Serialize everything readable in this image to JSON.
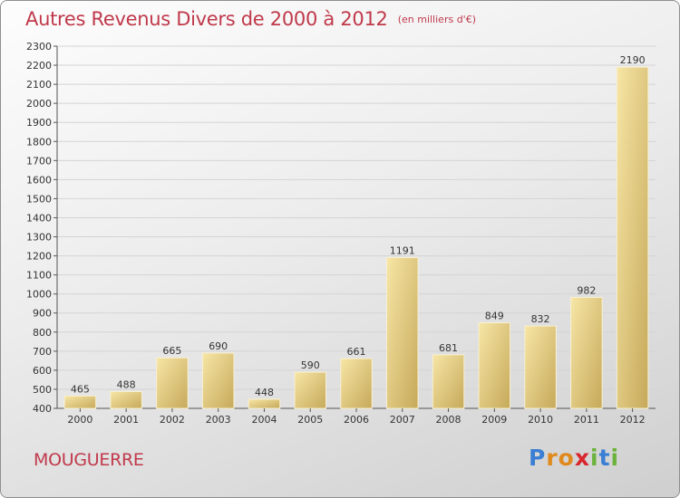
{
  "title": "Autres Revenus Divers de 2000 à 2012",
  "subtitle": "(en milliers d'€)",
  "commune": "MOUGUERRE",
  "logo": {
    "letters": [
      "P",
      "r",
      "o",
      "x",
      "i",
      "t",
      "i"
    ],
    "colors": [
      "#3a7fd4",
      "#e08a1e",
      "#e08a1e",
      "#d8262d",
      "#6cb33e",
      "#3a7fd4",
      "#6cb33e"
    ]
  },
  "colors": {
    "title": "#c0394b",
    "bar_light": "#f5e2a0",
    "bar_dark": "#c9ac5c"
  },
  "chart_data": {
    "type": "bar",
    "categories": [
      "2000",
      "2001",
      "2002",
      "2003",
      "2004",
      "2005",
      "2006",
      "2007",
      "2008",
      "2009",
      "2010",
      "2011",
      "2012"
    ],
    "values": [
      465,
      488,
      665,
      690,
      448,
      590,
      661,
      1191,
      681,
      849,
      832,
      982,
      2190
    ],
    "data_labels": [
      "465",
      "488",
      "665",
      "690",
      "448",
      "590",
      "661",
      "1191",
      "681",
      "849",
      "832",
      "982",
      "2190"
    ],
    "ylim": [
      400,
      2300
    ],
    "yticks": [
      400,
      500,
      600,
      700,
      800,
      900,
      1000,
      1100,
      1200,
      1300,
      1400,
      1500,
      1600,
      1700,
      1800,
      1900,
      2000,
      2100,
      2200,
      2300
    ],
    "grid": true
  }
}
